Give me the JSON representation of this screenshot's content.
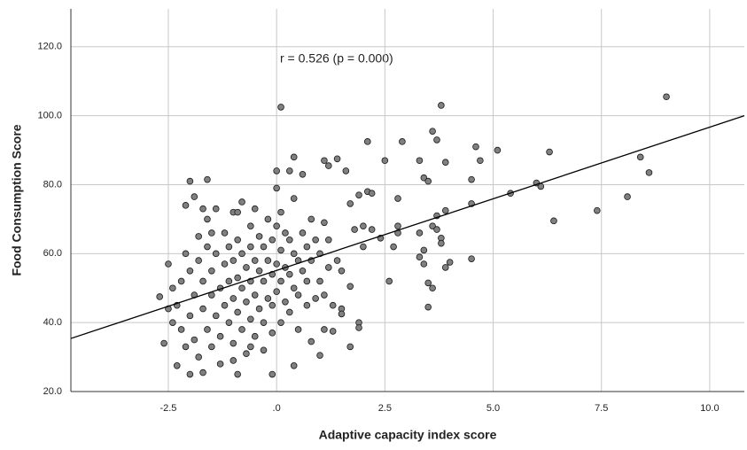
{
  "chart_data": {
    "type": "scatter",
    "x_label": "Adaptive capacity index score",
    "y_label": "Food Consumption Score",
    "annotation": "r = 0.526 (p = 0.000)",
    "color": "#808080",
    "grid": true,
    "xlim": [
      -4.75,
      10.8
    ],
    "ylim": [
      20,
      131
    ],
    "xticks": [
      {
        "value": -2.5,
        "label": "-2.5"
      },
      {
        "value": 0,
        "label": ".0"
      },
      {
        "value": 2.5,
        "label": "2.5"
      },
      {
        "value": 5,
        "label": "5.0"
      },
      {
        "value": 7.5,
        "label": "7.5"
      },
      {
        "value": 10,
        "label": "10.0"
      }
    ],
    "yticks": [
      {
        "value": 20,
        "label": "20.0"
      },
      {
        "value": 40,
        "label": "40.0"
      },
      {
        "value": 60,
        "label": "60.0"
      },
      {
        "value": 80,
        "label": "80.0"
      },
      {
        "value": 100,
        "label": "100.0"
      },
      {
        "value": 120,
        "label": "120.0"
      }
    ],
    "fit": {
      "x": [
        -4.75,
        10.8
      ],
      "y": [
        35.4,
        100
      ]
    },
    "x": [
      9.0,
      8.4,
      8.6,
      8.1,
      7.4,
      6.4,
      6.1,
      6.0,
      5.4,
      6.3,
      5.1,
      4.6,
      4.7,
      4.5,
      4.5,
      4.5,
      3.8,
      3.6,
      3.7,
      3.3,
      3.4,
      3.5,
      3.9,
      3.7,
      3.9,
      3.6,
      3.7,
      3.8,
      3.8,
      3.3,
      3.3,
      3.4,
      3.4,
      3.9,
      4.0,
      3.5,
      3.6,
      3.5,
      2.9,
      2.5,
      2.1,
      2.8,
      2.8,
      2.8,
      2.7,
      2.6,
      2.4,
      2.1,
      2.2,
      1.9,
      2.0,
      2.2,
      2.0,
      1.8,
      1.7,
      1.6,
      1.4,
      1.2,
      1.1,
      0.1,
      0.4,
      0.3,
      0.0,
      0.6,
      1.4,
      1.5,
      1.7,
      1.9,
      1.9,
      1.7,
      1.5,
      1.5,
      1.3,
      1.1,
      1.0,
      0.8,
      0.4,
      -0.1,
      -0.9,
      -1.7,
      -2.0,
      -2.3,
      -2.6,
      -2.7,
      -2.5,
      -2.0,
      -1.9,
      -1.6,
      -2.1,
      -2.4,
      -2.3,
      -2.2,
      -2.2,
      -2.1,
      -2.0,
      -2.0,
      -1.9,
      -1.9,
      -1.8,
      -1.8,
      -1.8,
      -1.7,
      -1.7,
      -1.6,
      -1.6,
      -1.6,
      -1.5,
      -1.5,
      -1.5,
      -1.4,
      -1.4,
      -1.4,
      -1.3,
      -1.3,
      -1.2,
      -1.2,
      -1.2,
      -1.1,
      -1.1,
      -1.1,
      -1.0,
      -1.0,
      -1.0,
      -1.0,
      -0.9,
      -0.9,
      -0.9,
      -0.8,
      -0.8,
      -0.8,
      -0.8,
      -0.7,
      -0.7,
      -0.7,
      -0.6,
      -0.6,
      -0.6,
      -0.6,
      -0.5,
      -0.5,
      -0.5,
      -0.5,
      -0.4,
      -0.4,
      -0.4,
      -0.3,
      -0.3,
      -0.3,
      -0.3,
      -0.2,
      -0.2,
      -0.2,
      -0.1,
      -0.1,
      -0.1,
      -0.1,
      0.0,
      0.0,
      0.0,
      0.0,
      0.1,
      0.1,
      0.1,
      0.1,
      0.2,
      0.2,
      0.2,
      0.3,
      0.3,
      0.3,
      0.4,
      0.4,
      0.4,
      0.5,
      0.5,
      0.5,
      0.6,
      0.6,
      0.7,
      0.7,
      0.7,
      0.8,
      0.8,
      0.9,
      0.9,
      1.0,
      1.0,
      1.1,
      1.1,
      1.2,
      1.2,
      1.3,
      -2.5,
      -2.4,
      -2.1,
      -1.3,
      -1.0,
      -0.6,
      -1.5,
      -0.9,
      -1.7
    ],
    "y": [
      105.5,
      88,
      83.5,
      76.5,
      72.5,
      69.5,
      79.5,
      80.5,
      77.5,
      89.5,
      90,
      91,
      87,
      81.5,
      74.5,
      58.5,
      103,
      95.5,
      93,
      87,
      82,
      81,
      86.5,
      71,
      72.5,
      68,
      67,
      64.5,
      63,
      66,
      59,
      57,
      61,
      56,
      57.5,
      51.5,
      50,
      44.5,
      92.5,
      87,
      92.5,
      76,
      68,
      66,
      62,
      52,
      64.5,
      78,
      77.5,
      77,
      68,
      67,
      62,
      67,
      74.5,
      84,
      87.5,
      85.5,
      87,
      102.5,
      88,
      84,
      84,
      83,
      58,
      55,
      50.5,
      40,
      38.5,
      33,
      44,
      42.5,
      37.5,
      38,
      30.5,
      34.5,
      27.5,
      25,
      25,
      25.5,
      25,
      27.5,
      34,
      47.5,
      57,
      81,
      76.5,
      81.5,
      74,
      50,
      45,
      52,
      38,
      60,
      55,
      42,
      48,
      35,
      65,
      58,
      30,
      52,
      44,
      70,
      62,
      38,
      55,
      48,
      33,
      73,
      60,
      42,
      50,
      36,
      66,
      57,
      45,
      62,
      52,
      40,
      72,
      58,
      47,
      34,
      64,
      53,
      43,
      75,
      60,
      50,
      38,
      56,
      46,
      31,
      68,
      62,
      52,
      41,
      73,
      58,
      48,
      36,
      65,
      55,
      44,
      62,
      52,
      40,
      32,
      70,
      58,
      47,
      64,
      54,
      45,
      37,
      79,
      68,
      57,
      49,
      72,
      61,
      52,
      40,
      66,
      56,
      46,
      64,
      54,
      43,
      76,
      60,
      50,
      58,
      48,
      38,
      66,
      55,
      62,
      52,
      45,
      70,
      58,
      64,
      47,
      60,
      52,
      69,
      48,
      56,
      64,
      45,
      44,
      40,
      33,
      28,
      29,
      33,
      66,
      72,
      73
    ]
  }
}
